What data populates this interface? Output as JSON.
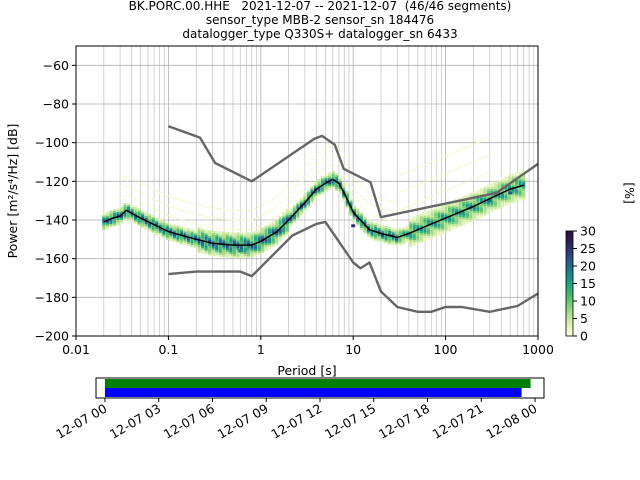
{
  "title": {
    "line1": "BK.PORC.00.HHE   2021-12-07 -- 2021-12-07  (46/46 segments)",
    "line2": "sensor_type MBB-2 sensor_sn 184476",
    "line3": "datalogger_type Q330S+ datalogger_sn 6433"
  },
  "chart_data": [
    {
      "type": "heatmap",
      "xlabel": "Period [s]",
      "ylabel": "Power [m²/s⁴/Hz] [dB]",
      "xscale": "log",
      "xlim": [
        0.01,
        1000
      ],
      "ylim": [
        -200,
        -50
      ],
      "xticks": [
        0.01,
        0.1,
        1,
        10,
        100,
        1000
      ],
      "xtick_labels": [
        "0.01",
        "0.1",
        "1",
        "10",
        "100",
        "1000"
      ],
      "yticks": [
        -200,
        -180,
        -160,
        -140,
        -120,
        -100,
        -80,
        -60
      ],
      "ytick_labels": [
        "−200",
        "−180",
        "−160",
        "−140",
        "−120",
        "−100",
        "−80",
        "−60"
      ],
      "grid": true,
      "colorbar": {
        "label": "[%]",
        "ticks": [
          0,
          5,
          10,
          15,
          20,
          25,
          30
        ],
        "tick_labels": [
          "0",
          "5",
          "10",
          "15",
          "20",
          "25",
          "30"
        ],
        "colors": [
          "#ffffd9",
          "#d8efb0",
          "#9bd77f",
          "#4dbd6e",
          "#1fa187",
          "#20798a",
          "#2c4f86",
          "#2e2a5b",
          "#2b0f3e"
        ]
      },
      "series": [
        {
          "name": "",
          "role": "mode-curve",
          "color": "#000000",
          "x": [
            0.02,
            0.025,
            0.03,
            0.035,
            0.05,
            0.1,
            0.2,
            0.3,
            0.5,
            0.8,
            1,
            1.5,
            2,
            3,
            4,
            5,
            6,
            7,
            8,
            10,
            15,
            20,
            30,
            40,
            50,
            70,
            100,
            200,
            300,
            500,
            700
          ],
          "y": [
            -141,
            -139,
            -138,
            -135,
            -139,
            -146,
            -150,
            -152,
            -153,
            -153,
            -151,
            -146,
            -140,
            -131,
            -124,
            -121,
            -119,
            -121,
            -126,
            -136,
            -145,
            -147,
            -149,
            -147,
            -145,
            -142,
            -139,
            -133,
            -129,
            -124,
            -122
          ]
        },
        {
          "name": "",
          "role": "noise-model-high",
          "color": "#666666",
          "x": [
            0.1,
            0.22,
            0.32,
            0.8,
            3.8,
            4.6,
            6.3,
            7.9,
            15.4,
            20,
            354.8,
            1000
          ],
          "y": [
            -91.5,
            -97.4,
            -110.5,
            -120,
            -98,
            -96.5,
            -101,
            -113.5,
            -120.5,
            -138.5,
            -126,
            -111
          ]
        },
        {
          "name": "",
          "role": "noise-model-low",
          "color": "#666666",
          "x": [
            0.1,
            0.2,
            0.6,
            0.8,
            2.2,
            4,
            5,
            6,
            10,
            12,
            15,
            20,
            30,
            50,
            70,
            100,
            150,
            300,
            600,
            1000
          ],
          "y": [
            -168,
            -166.7,
            -166.7,
            -169,
            -148,
            -142,
            -141,
            -146.5,
            -162,
            -165,
            -162,
            -177,
            -185,
            -187.5,
            -187.5,
            -185,
            -185,
            -187.5,
            -184.5,
            -178
          ]
        }
      ],
      "density_cells": [
        {
          "x": 0.6,
          "y": -156,
          "level": 18
        },
        {
          "x": 0.7,
          "y": -155,
          "level": 14
        },
        {
          "x": 300,
          "y": -130,
          "level": 20
        },
        {
          "x": 500,
          "y": -126,
          "level": 22
        },
        {
          "x": 150,
          "y": -136,
          "level": 16
        },
        {
          "x": 10,
          "y": -143,
          "level": 25
        }
      ]
    },
    {
      "type": "timeline",
      "xticks": [
        "12-07 00",
        "12-07 03",
        "12-07 06",
        "12-07 09",
        "12-07 12",
        "12-07 15",
        "12-07 18",
        "12-07 21",
        "12-08 00"
      ],
      "xlim_hours": [
        -0.5,
        24.5
      ],
      "bars": [
        {
          "name": "",
          "color": "#008000",
          "start_hours": 0,
          "end_hours": 23.75
        },
        {
          "name": "",
          "color": "#0000ff",
          "start_hours": 0,
          "end_hours": 23.25
        }
      ]
    }
  ]
}
